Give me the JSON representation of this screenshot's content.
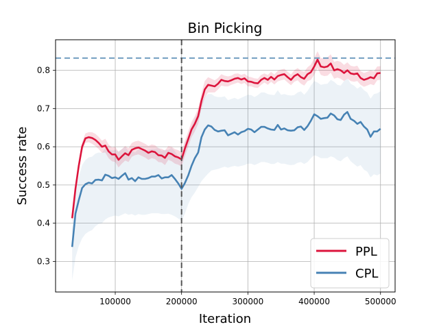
{
  "chart_data": {
    "type": "line",
    "title": "Bin Picking",
    "xlabel": "Iteration",
    "ylabel": "Success rate",
    "xlim": [
      10000,
      522000
    ],
    "ylim": [
      0.22,
      0.88
    ],
    "xticks": [
      100000,
      200000,
      300000,
      400000,
      500000
    ],
    "xtick_labels": [
      "100000",
      "200000",
      "300000",
      "400000",
      "500000"
    ],
    "yticks": [
      0.3,
      0.4,
      0.5,
      0.6,
      0.7,
      0.8
    ],
    "ytick_labels": [
      "0.3",
      "0.4",
      "0.5",
      "0.6",
      "0.7",
      "0.8"
    ],
    "grid": true,
    "legend_position": "bottom-right",
    "vertical_marker": {
      "x": 200000,
      "style": "dashed",
      "color": "#555555"
    },
    "reference_line": {
      "y": 0.832,
      "style": "dashed",
      "color": "#6f9bbf"
    },
    "x": [
      35000,
      40000,
      45000,
      50000,
      55000,
      60000,
      65000,
      70000,
      75000,
      80000,
      85000,
      90000,
      95000,
      100000,
      105000,
      110000,
      115000,
      120000,
      125000,
      130000,
      135000,
      140000,
      145000,
      150000,
      155000,
      160000,
      165000,
      170000,
      175000,
      180000,
      185000,
      190000,
      195000,
      200000,
      205000,
      210000,
      215000,
      220000,
      225000,
      230000,
      235000,
      240000,
      245000,
      250000,
      255000,
      260000,
      265000,
      270000,
      275000,
      280000,
      285000,
      290000,
      295000,
      300000,
      305000,
      310000,
      315000,
      320000,
      325000,
      330000,
      335000,
      340000,
      345000,
      350000,
      355000,
      360000,
      365000,
      370000,
      375000,
      380000,
      385000,
      390000,
      395000,
      400000,
      405000,
      410000,
      415000,
      420000,
      425000,
      430000,
      435000,
      440000,
      445000,
      450000,
      455000,
      460000,
      465000,
      470000,
      475000,
      480000,
      485000,
      490000,
      495000,
      500000
    ],
    "series": [
      {
        "name": "PPL",
        "color": "#dc143c",
        "values": [
          0.413,
          0.49,
          0.55,
          0.6,
          0.622,
          0.625,
          0.623,
          0.618,
          0.61,
          0.6,
          0.603,
          0.588,
          0.58,
          0.58,
          0.566,
          0.575,
          0.583,
          0.578,
          0.592,
          0.596,
          0.598,
          0.594,
          0.59,
          0.584,
          0.588,
          0.586,
          0.578,
          0.577,
          0.571,
          0.584,
          0.581,
          0.575,
          0.572,
          0.567,
          0.595,
          0.62,
          0.645,
          0.66,
          0.68,
          0.72,
          0.75,
          0.762,
          0.76,
          0.758,
          0.765,
          0.775,
          0.772,
          0.771,
          0.774,
          0.778,
          0.78,
          0.776,
          0.779,
          0.771,
          0.77,
          0.767,
          0.766,
          0.775,
          0.78,
          0.775,
          0.783,
          0.776,
          0.785,
          0.788,
          0.79,
          0.782,
          0.775,
          0.785,
          0.79,
          0.782,
          0.778,
          0.79,
          0.795,
          0.81,
          0.828,
          0.81,
          0.808,
          0.81,
          0.818,
          0.8,
          0.803,
          0.8,
          0.793,
          0.8,
          0.792,
          0.79,
          0.792,
          0.78,
          0.775,
          0.778,
          0.782,
          0.779,
          0.792,
          0.793
        ],
        "band_low": [
          0.4,
          0.475,
          0.538,
          0.588,
          0.61,
          0.612,
          0.608,
          0.602,
          0.594,
          0.584,
          0.585,
          0.57,
          0.562,
          0.56,
          0.546,
          0.556,
          0.564,
          0.56,
          0.574,
          0.578,
          0.58,
          0.576,
          0.572,
          0.566,
          0.57,
          0.568,
          0.56,
          0.559,
          0.552,
          0.566,
          0.562,
          0.556,
          0.553,
          0.548,
          0.575,
          0.6,
          0.625,
          0.64,
          0.66,
          0.7,
          0.728,
          0.742,
          0.742,
          0.742,
          0.75,
          0.76,
          0.758,
          0.758,
          0.762,
          0.765,
          0.768,
          0.764,
          0.767,
          0.758,
          0.758,
          0.755,
          0.754,
          0.762,
          0.768,
          0.762,
          0.77,
          0.763,
          0.771,
          0.774,
          0.776,
          0.768,
          0.761,
          0.77,
          0.774,
          0.765,
          0.76,
          0.772,
          0.775,
          0.788,
          0.806,
          0.788,
          0.785,
          0.786,
          0.794,
          0.778,
          0.781,
          0.778,
          0.772,
          0.779,
          0.772,
          0.77,
          0.772,
          0.762,
          0.757,
          0.76,
          0.764,
          0.761,
          0.774,
          0.775
        ],
        "band_high": [
          0.425,
          0.503,
          0.562,
          0.612,
          0.635,
          0.638,
          0.638,
          0.634,
          0.626,
          0.616,
          0.621,
          0.606,
          0.598,
          0.6,
          0.586,
          0.594,
          0.602,
          0.596,
          0.61,
          0.614,
          0.616,
          0.612,
          0.608,
          0.602,
          0.606,
          0.604,
          0.596,
          0.595,
          0.59,
          0.602,
          0.6,
          0.594,
          0.591,
          0.586,
          0.615,
          0.64,
          0.665,
          0.68,
          0.7,
          0.74,
          0.772,
          0.782,
          0.778,
          0.774,
          0.78,
          0.79,
          0.786,
          0.784,
          0.786,
          0.791,
          0.792,
          0.788,
          0.791,
          0.784,
          0.782,
          0.779,
          0.778,
          0.788,
          0.792,
          0.788,
          0.796,
          0.789,
          0.799,
          0.802,
          0.804,
          0.796,
          0.789,
          0.8,
          0.806,
          0.799,
          0.796,
          0.808,
          0.815,
          0.832,
          0.85,
          0.832,
          0.831,
          0.834,
          0.842,
          0.822,
          0.825,
          0.822,
          0.814,
          0.821,
          0.812,
          0.81,
          0.812,
          0.798,
          0.793,
          0.796,
          0.8,
          0.797,
          0.81,
          0.811
        ]
      },
      {
        "name": "CPL",
        "color": "#4682b4",
        "values": [
          0.338,
          0.425,
          0.46,
          0.492,
          0.502,
          0.506,
          0.504,
          0.513,
          0.514,
          0.512,
          0.527,
          0.524,
          0.518,
          0.52,
          0.516,
          0.524,
          0.531,
          0.514,
          0.518,
          0.51,
          0.52,
          0.516,
          0.516,
          0.518,
          0.522,
          0.522,
          0.526,
          0.517,
          0.52,
          0.52,
          0.526,
          0.516,
          0.504,
          0.49,
          0.505,
          0.525,
          0.55,
          0.57,
          0.585,
          0.625,
          0.645,
          0.656,
          0.653,
          0.644,
          0.64,
          0.642,
          0.643,
          0.63,
          0.634,
          0.638,
          0.632,
          0.638,
          0.641,
          0.647,
          0.645,
          0.638,
          0.645,
          0.652,
          0.652,
          0.648,
          0.645,
          0.644,
          0.657,
          0.645,
          0.648,
          0.643,
          0.642,
          0.643,
          0.651,
          0.653,
          0.644,
          0.654,
          0.668,
          0.685,
          0.68,
          0.673,
          0.675,
          0.676,
          0.687,
          0.682,
          0.672,
          0.67,
          0.684,
          0.691,
          0.673,
          0.668,
          0.66,
          0.665,
          0.653,
          0.645,
          0.626,
          0.64,
          0.64,
          0.647
        ],
        "band_low": [
          0.25,
          0.31,
          0.34,
          0.36,
          0.372,
          0.378,
          0.382,
          0.392,
          0.398,
          0.4,
          0.41,
          0.415,
          0.418,
          0.42,
          0.418,
          0.422,
          0.426,
          0.422,
          0.424,
          0.42,
          0.424,
          0.422,
          0.422,
          0.424,
          0.426,
          0.426,
          0.426,
          0.424,
          0.424,
          0.425,
          0.422,
          0.418,
          0.412,
          0.405,
          0.425,
          0.45,
          0.468,
          0.48,
          0.495,
          0.51,
          0.52,
          0.53,
          0.538,
          0.54,
          0.542,
          0.545,
          0.548,
          0.545,
          0.548,
          0.55,
          0.548,
          0.55,
          0.552,
          0.556,
          0.556,
          0.552,
          0.556,
          0.56,
          0.56,
          0.558,
          0.555,
          0.555,
          0.56,
          0.556,
          0.556,
          0.553,
          0.552,
          0.553,
          0.558,
          0.56,
          0.555,
          0.56,
          0.57,
          0.578,
          0.575,
          0.57,
          0.57,
          0.57,
          0.575,
          0.572,
          0.565,
          0.562,
          0.57,
          0.575,
          0.562,
          0.555,
          0.548,
          0.552,
          0.54,
          0.535,
          0.52,
          0.528,
          0.525,
          0.53
        ],
        "band_high": [
          0.39,
          0.48,
          0.52,
          0.552,
          0.565,
          0.572,
          0.574,
          0.582,
          0.585,
          0.584,
          0.596,
          0.594,
          0.59,
          0.592,
          0.588,
          0.594,
          0.6,
          0.588,
          0.59,
          0.585,
          0.594,
          0.59,
          0.59,
          0.592,
          0.595,
          0.595,
          0.598,
          0.59,
          0.592,
          0.592,
          0.598,
          0.588,
          0.575,
          0.56,
          0.61,
          0.63,
          0.655,
          0.675,
          0.69,
          0.715,
          0.73,
          0.738,
          0.738,
          0.732,
          0.73,
          0.73,
          0.732,
          0.722,
          0.725,
          0.728,
          0.724,
          0.728,
          0.732,
          0.736,
          0.735,
          0.73,
          0.735,
          0.742,
          0.742,
          0.738,
          0.736,
          0.735,
          0.748,
          0.736,
          0.738,
          0.735,
          0.734,
          0.735,
          0.742,
          0.745,
          0.736,
          0.746,
          0.76,
          0.772,
          0.768,
          0.762,
          0.764,
          0.765,
          0.775,
          0.77,
          0.762,
          0.76,
          0.772,
          0.78,
          0.765,
          0.76,
          0.752,
          0.758,
          0.748,
          0.742,
          0.726,
          0.738,
          0.74,
          0.745
        ]
      }
    ]
  }
}
